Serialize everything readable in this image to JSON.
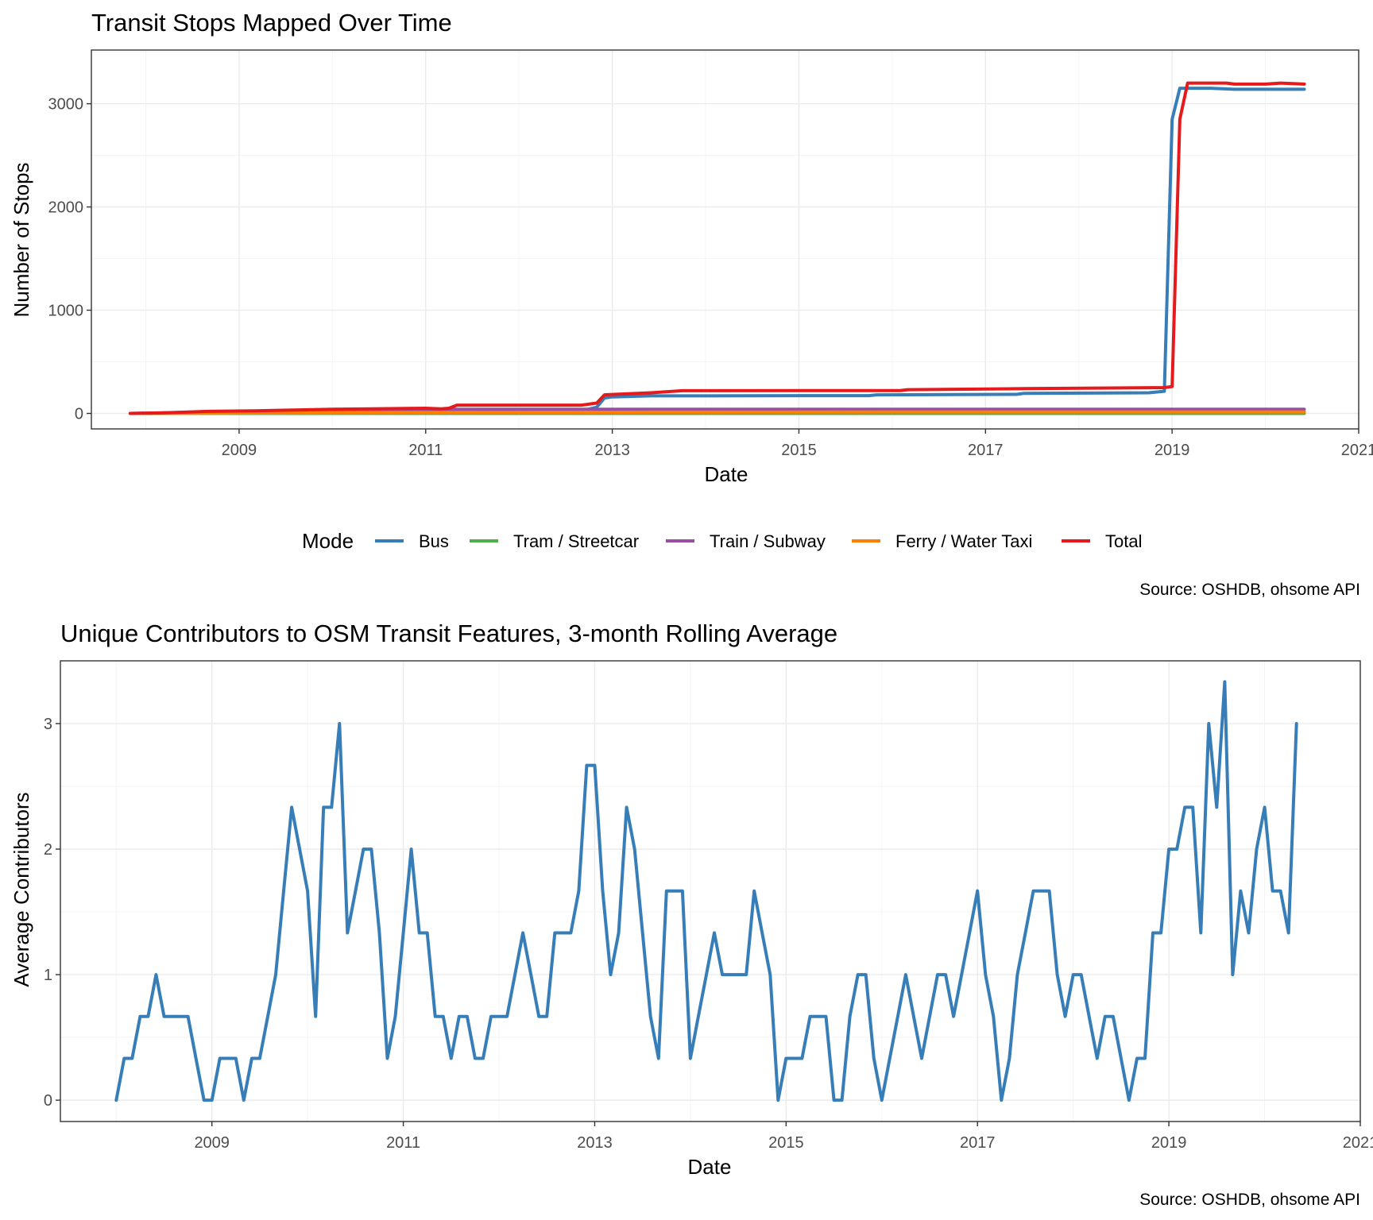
{
  "chart_data": [
    {
      "type": "line",
      "title": "Transit Stops Mapped Over Time",
      "xlabel": "Date",
      "ylabel": "Number of Stops",
      "x_ticks": [
        "2009",
        "2011",
        "2013",
        "2015",
        "2017",
        "2019",
        "2021"
      ],
      "y_ticks": [
        "0",
        "1000",
        "2000",
        "3000"
      ],
      "ylim": [
        -150,
        3520
      ],
      "xlim": [
        "2007-06-01",
        "2021-01-01"
      ],
      "grid": true,
      "legend": {
        "title": "Mode",
        "placement": "bottom",
        "entries": [
          "Bus",
          "Tram / Streetcar",
          "Train / Subway",
          "Ferry / Water Taxi",
          "Total"
        ]
      },
      "caption": "Source: OSHDB, ohsome API",
      "series": [
        {
          "name": "Bus",
          "color": "#377eb8",
          "points": [
            [
              "2007-11-01",
              0
            ],
            [
              "2008-03-01",
              3
            ],
            [
              "2008-09-01",
              8
            ],
            [
              "2009-06-01",
              10
            ],
            [
              "2010-06-01",
              12
            ],
            [
              "2011-04-01",
              15
            ],
            [
              "2011-05-01",
              20
            ],
            [
              "2012-09-01",
              25
            ],
            [
              "2012-11-01",
              60
            ],
            [
              "2012-12-01",
              150
            ],
            [
              "2013-01-01",
              160
            ],
            [
              "2013-06-01",
              170
            ],
            [
              "2015-10-01",
              172
            ],
            [
              "2015-11-01",
              180
            ],
            [
              "2017-05-01",
              185
            ],
            [
              "2017-06-01",
              195
            ],
            [
              "2018-10-01",
              200
            ],
            [
              "2018-12-01",
              215
            ],
            [
              "2019-01-01",
              2850
            ],
            [
              "2019-02-01",
              3150
            ],
            [
              "2019-06-01",
              3150
            ],
            [
              "2019-09-01",
              3140
            ],
            [
              "2020-06-01",
              3140
            ]
          ]
        },
        {
          "name": "Tram / Streetcar",
          "color": "#4daf4a",
          "points": [
            [
              "2007-11-01",
              0
            ],
            [
              "2020-06-01",
              0
            ]
          ]
        },
        {
          "name": "Train / Subway",
          "color": "#984ea3",
          "points": [
            [
              "2007-11-01",
              0
            ],
            [
              "2008-06-01",
              10
            ],
            [
              "2009-01-01",
              20
            ],
            [
              "2010-01-01",
              30
            ],
            [
              "2011-05-01",
              40
            ],
            [
              "2012-11-01",
              40
            ],
            [
              "2013-01-01",
              40
            ],
            [
              "2020-06-01",
              40
            ]
          ]
        },
        {
          "name": "Ferry / Water Taxi",
          "color": "#ff7f00",
          "points": [
            [
              "2007-11-01",
              0
            ],
            [
              "2009-06-01",
              5
            ],
            [
              "2011-01-01",
              10
            ],
            [
              "2013-06-01",
              12
            ],
            [
              "2016-06-01",
              15
            ],
            [
              "2020-06-01",
              15
            ]
          ]
        },
        {
          "name": "Total",
          "color": "#e41a1c",
          "points": [
            [
              "2007-11-01",
              0
            ],
            [
              "2008-03-01",
              5
            ],
            [
              "2008-09-01",
              20
            ],
            [
              "2009-03-01",
              25
            ],
            [
              "2009-06-01",
              30
            ],
            [
              "2010-01-01",
              40
            ],
            [
              "2010-06-01",
              45
            ],
            [
              "2011-01-01",
              50
            ],
            [
              "2011-03-01",
              45
            ],
            [
              "2011-04-01",
              50
            ],
            [
              "2011-05-01",
              80
            ],
            [
              "2012-09-01",
              80
            ],
            [
              "2012-11-01",
              100
            ],
            [
              "2012-12-01",
              180
            ],
            [
              "2013-06-01",
              200
            ],
            [
              "2013-10-01",
              220
            ],
            [
              "2016-02-01",
              222
            ],
            [
              "2016-03-01",
              230
            ],
            [
              "2017-06-01",
              240
            ],
            [
              "2018-12-01",
              250
            ],
            [
              "2019-01-01",
              260
            ],
            [
              "2019-02-01",
              2850
            ],
            [
              "2019-03-01",
              3200
            ],
            [
              "2019-08-01",
              3200
            ],
            [
              "2019-09-01",
              3190
            ],
            [
              "2020-01-01",
              3190
            ],
            [
              "2020-03-01",
              3200
            ],
            [
              "2020-06-01",
              3190
            ]
          ]
        }
      ]
    },
    {
      "type": "line",
      "title": "Unique Contributors to OSM Transit Features, 3-month Rolling Average",
      "xlabel": "Date",
      "ylabel": "Average Contributors",
      "x_ticks": [
        "2009",
        "2011",
        "2013",
        "2015",
        "2017",
        "2019",
        "2021"
      ],
      "y_ticks": [
        "0",
        "1",
        "2",
        "3"
      ],
      "ylim": [
        -0.17,
        3.5
      ],
      "xlim": [
        "2007-06-01",
        "2021-01-01"
      ],
      "grid": true,
      "caption": "Source: OSHDB, ohsome API",
      "series": [
        {
          "color": "#377eb8",
          "start": "2008-01-01",
          "step_months": 1,
          "values": [
            0,
            0.333,
            0.333,
            0.667,
            0.667,
            1,
            0.667,
            0.667,
            0.667,
            0.667,
            0.333,
            0,
            0,
            0.333,
            0.333,
            0.333,
            0,
            0.333,
            0.333,
            0.667,
            1,
            1.667,
            2.333,
            2,
            1.667,
            0.667,
            2.333,
            2.333,
            3,
            1.333,
            1.667,
            2,
            2,
            1.333,
            0.333,
            0.667,
            1.333,
            2,
            1.333,
            1.333,
            0.667,
            0.667,
            0.333,
            0.667,
            0.667,
            0.333,
            0.333,
            0.667,
            0.667,
            0.667,
            1,
            1.333,
            1,
            0.667,
            0.667,
            1.333,
            1.333,
            1.333,
            1.667,
            2.667,
            2.667,
            1.667,
            1,
            1.333,
            2.333,
            2,
            1.333,
            0.667,
            0.333,
            1.667,
            1.667,
            1.667,
            0.333,
            0.667,
            1,
            1.333,
            1,
            1,
            1,
            1,
            1.667,
            1.333,
            1,
            0,
            0.333,
            0.333,
            0.333,
            0.667,
            0.667,
            0.667,
            0,
            0,
            0.667,
            1,
            1,
            0.333,
            0,
            0.333,
            0.667,
            1,
            0.667,
            0.333,
            0.667,
            1,
            1,
            0.667,
            1,
            1.333,
            1.667,
            1,
            0.667,
            0,
            0.333,
            1,
            1.333,
            1.667,
            1.667,
            1.667,
            1,
            0.667,
            1,
            1,
            0.667,
            0.333,
            0.667,
            0.667,
            0.333,
            0,
            0.333,
            0.333,
            1.333,
            1.333,
            2,
            2,
            2.333,
            2.333,
            1.333,
            3,
            2.333,
            3.333,
            1,
            1.667,
            1.333,
            2,
            2.333,
            1.667,
            1.667,
            1.333,
            3
          ]
        }
      ]
    }
  ]
}
